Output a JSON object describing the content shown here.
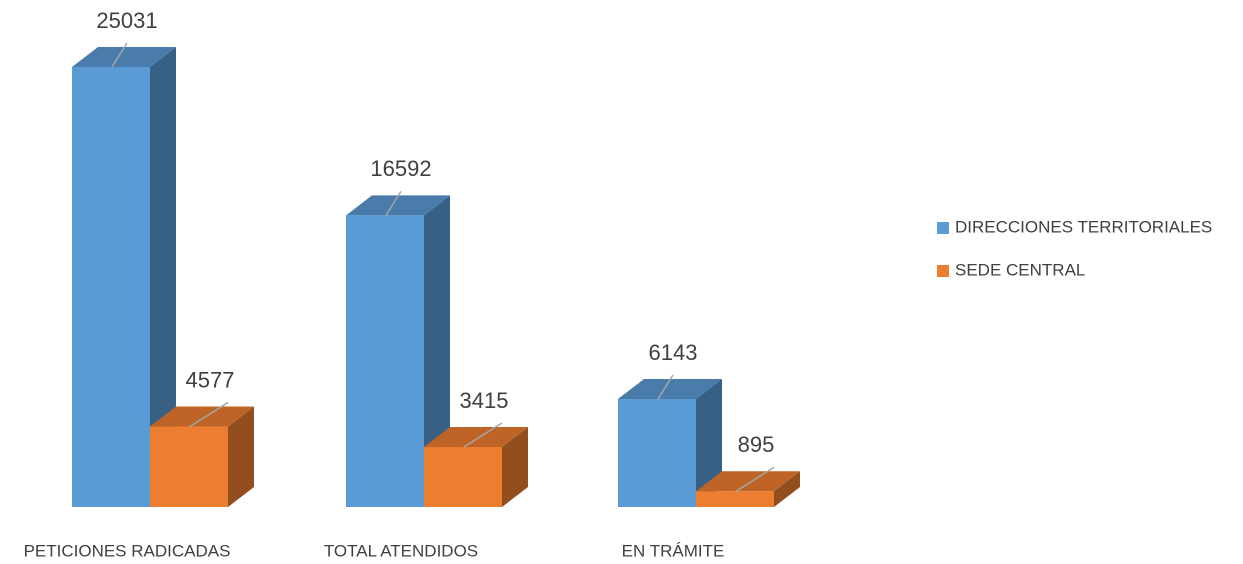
{
  "chart_data": {
    "type": "bar3d",
    "categories": [
      "PETICIONES RADICADAS",
      "TOTAL ATENDIDOS",
      "EN TRÁMITE"
    ],
    "series": [
      {
        "name": "DIRECCIONES TERRITORIALES",
        "color": "#5b9bd5",
        "values": [
          25031,
          16592,
          6143
        ]
      },
      {
        "name": "SEDE CENTRAL",
        "color": "#ed7d31",
        "values": [
          4577,
          3415,
          895
        ]
      }
    ],
    "legend": "right"
  }
}
